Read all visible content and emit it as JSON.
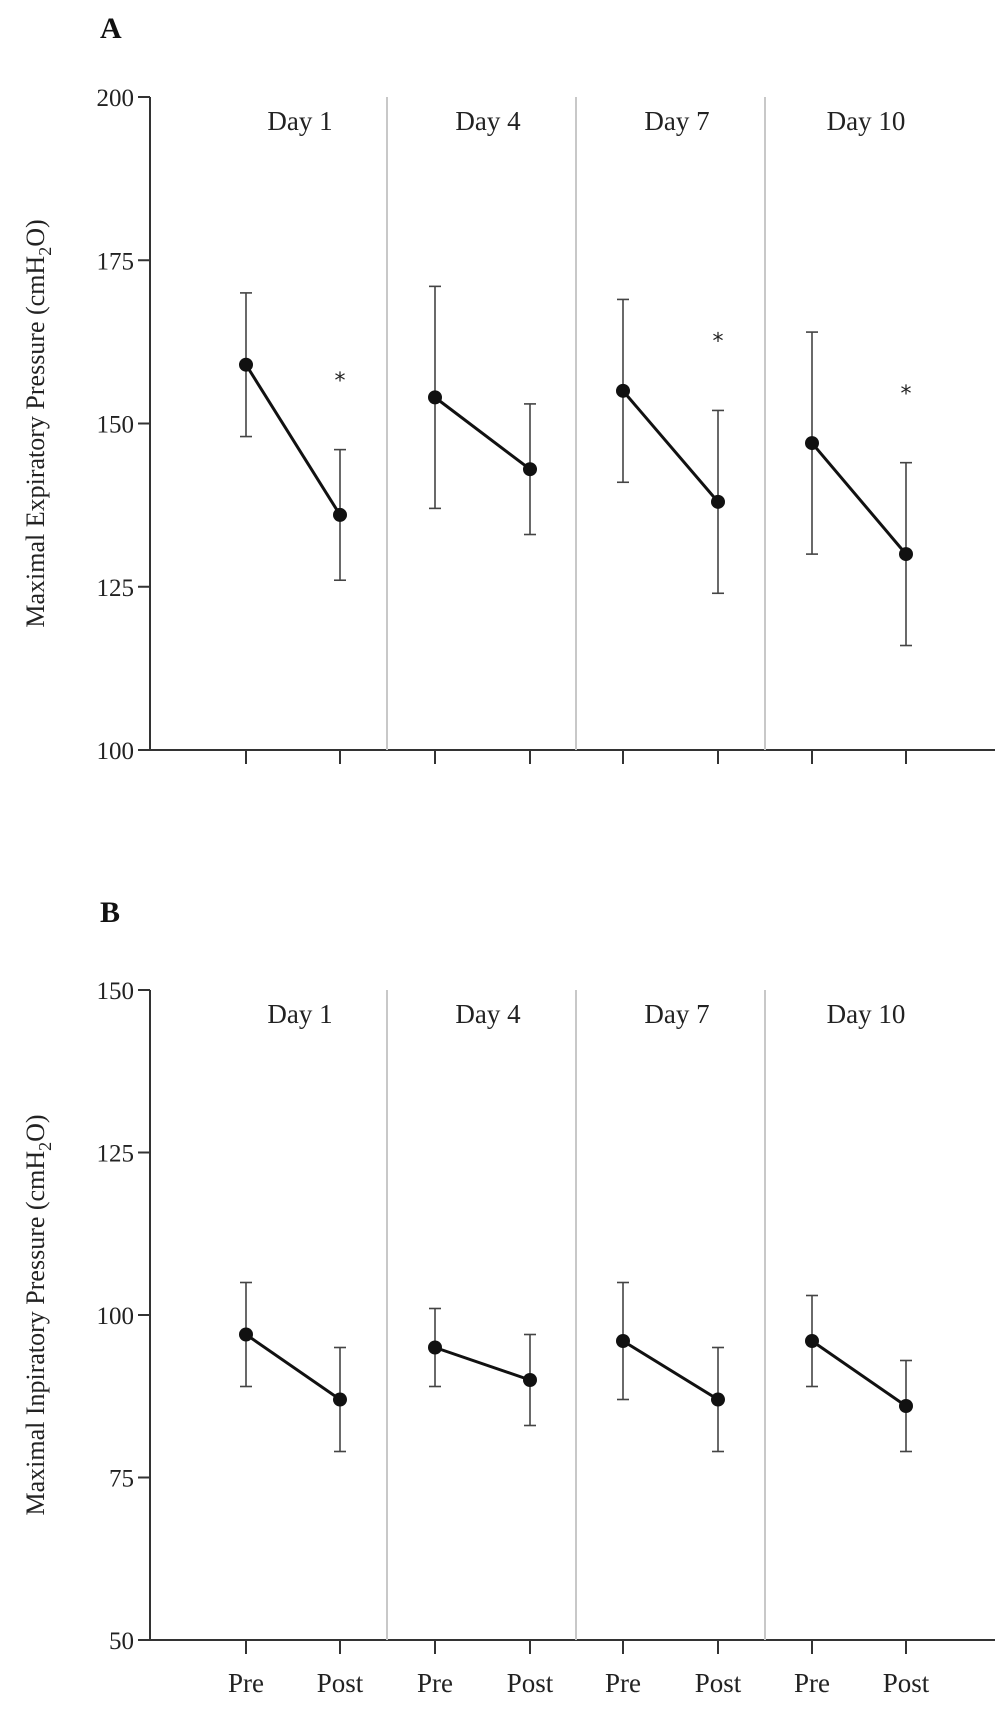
{
  "chart_data": [
    {
      "panel": "A",
      "type": "line",
      "ylabel": "Maximal Expiratory Pressure (cmH",
      "ylabel_sub": "2",
      "ylabel_end": "O)",
      "ylim": [
        100,
        200
      ],
      "yticks": [
        100,
        125,
        150,
        175,
        200
      ],
      "groups": [
        {
          "label": "Day 1",
          "values": [
            159,
            136
          ],
          "err_low": [
            148,
            126
          ],
          "err_high": [
            170,
            146
          ],
          "significant": true
        },
        {
          "label": "Day 4",
          "values": [
            154,
            143
          ],
          "err_low": [
            137,
            133
          ],
          "err_high": [
            171,
            153
          ],
          "significant": false
        },
        {
          "label": "Day 7",
          "values": [
            155,
            138
          ],
          "err_low": [
            141,
            124
          ],
          "err_high": [
            169,
            152
          ],
          "significant": true
        },
        {
          "label": "Day 10",
          "values": [
            147,
            130
          ],
          "err_low": [
            130,
            116
          ],
          "err_high": [
            164,
            144
          ],
          "significant": true
        }
      ],
      "star_values": [
        157,
        null,
        163,
        155
      ]
    },
    {
      "panel": "B",
      "type": "line",
      "ylabel": "Maximal Inpiratory Pressure (cmH",
      "ylabel_sub": "2",
      "ylabel_end": "O)",
      "ylim": [
        50,
        150
      ],
      "yticks": [
        50,
        75,
        100,
        125,
        150
      ],
      "groups": [
        {
          "label": "Day 1",
          "values": [
            97,
            87
          ],
          "err_low": [
            89,
            79
          ],
          "err_high": [
            105,
            95
          ],
          "significant": false
        },
        {
          "label": "Day 4",
          "values": [
            95,
            90
          ],
          "err_low": [
            89,
            83
          ],
          "err_high": [
            101,
            97
          ],
          "significant": false
        },
        {
          "label": "Day 7",
          "values": [
            96,
            87
          ],
          "err_low": [
            87,
            79
          ],
          "err_high": [
            105,
            95
          ],
          "significant": false
        },
        {
          "label": "Day 10",
          "values": [
            96,
            86
          ],
          "err_low": [
            89,
            79
          ],
          "err_high": [
            103,
            93
          ],
          "significant": false
        }
      ],
      "star_values": [
        null,
        null,
        null,
        null
      ]
    }
  ],
  "categories": [
    "Pre",
    "Post"
  ],
  "star_symbol": "*",
  "colors": {
    "line": "#111111",
    "axis": "#333333",
    "divider": "#c8c8c8",
    "errorbar": "#444444"
  }
}
